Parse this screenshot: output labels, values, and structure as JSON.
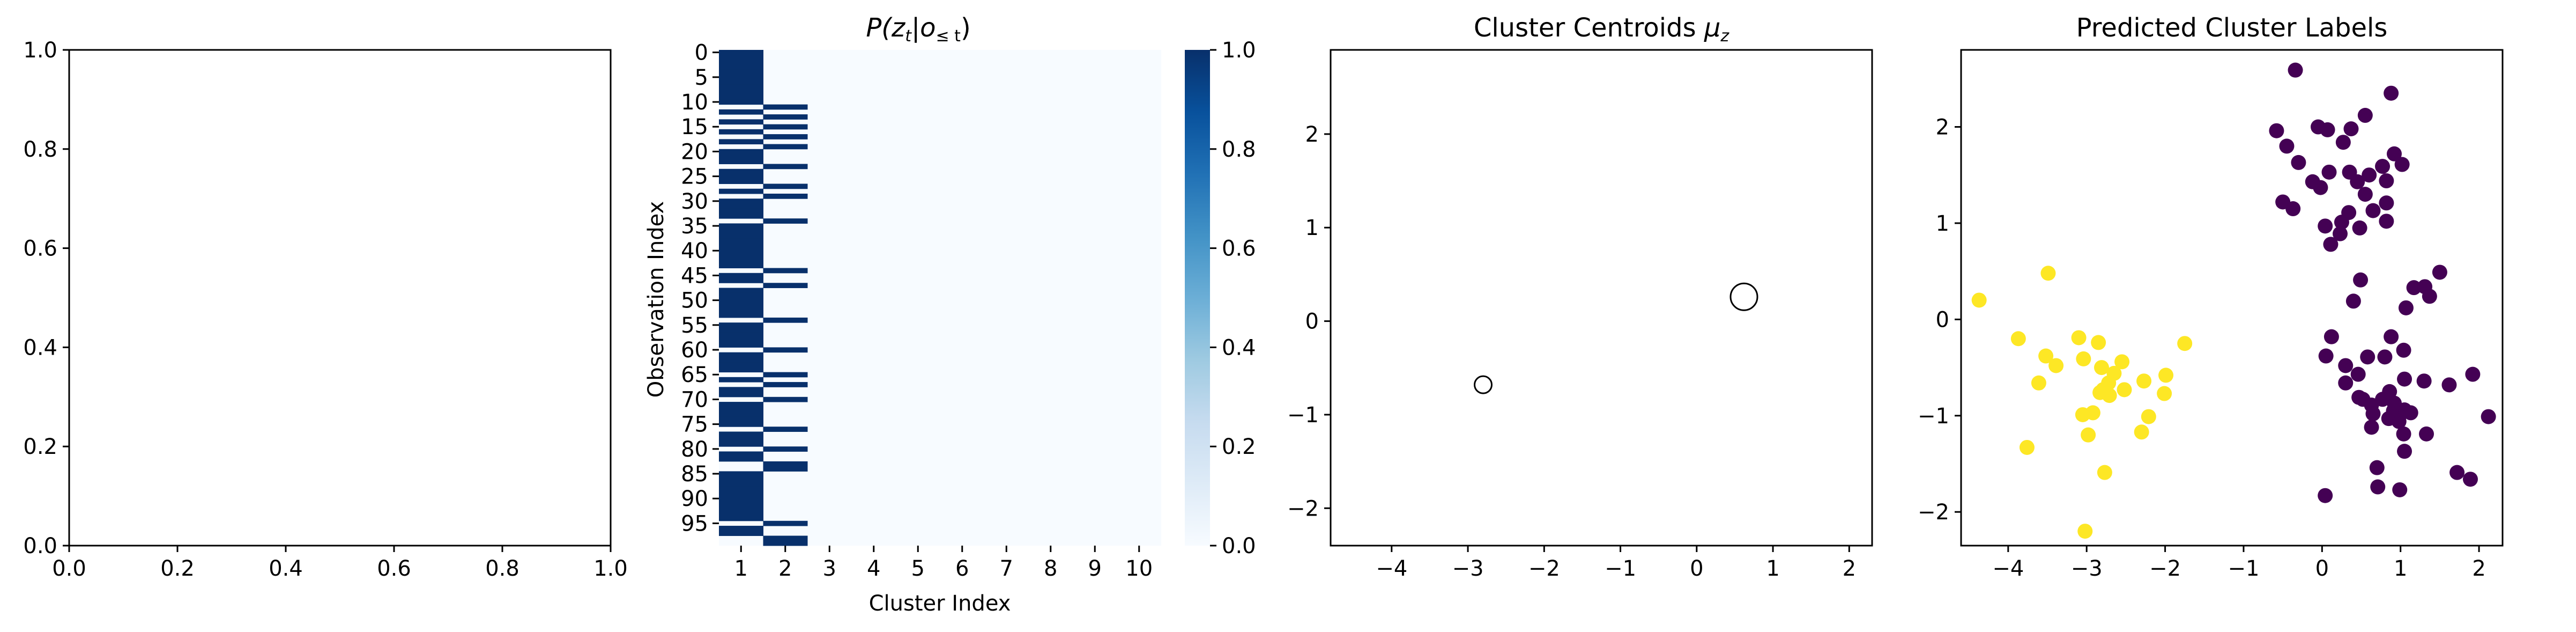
{
  "chart_data": [
    {
      "type": "line",
      "title": "",
      "xlabel": "",
      "ylabel": "",
      "xlim": [
        0.0,
        1.0
      ],
      "ylim": [
        0.0,
        1.0
      ],
      "xticks": [
        "0.0",
        "0.2",
        "0.4",
        "0.6",
        "0.8",
        "1.0"
      ],
      "yticks": [
        "0.0",
        "0.2",
        "0.4",
        "0.6",
        "0.8",
        "1.0"
      ],
      "series": []
    },
    {
      "type": "heatmap",
      "title_parts": {
        "p": "P(",
        "z": "z",
        "zsub": "t",
        "bar": "|",
        "o": "o",
        "osub": "≤ t",
        "close": ")"
      },
      "xlabel": "Cluster Index",
      "ylabel": "Observation Index",
      "xticks": [
        "1",
        "2",
        "3",
        "4",
        "5",
        "6",
        "7",
        "8",
        "9",
        "10"
      ],
      "yticks": [
        "0",
        "5",
        "10",
        "15",
        "20",
        "25",
        "30",
        "35",
        "40",
        "45",
        "50",
        "55",
        "60",
        "65",
        "70",
        "75",
        "80",
        "85",
        "90",
        "95"
      ],
      "n_rows": 100,
      "n_cols": 10,
      "cluster2_rows": [
        11,
        13,
        15,
        17,
        19,
        23,
        27,
        29,
        34,
        44,
        47,
        54,
        60,
        65,
        67,
        70,
        76,
        80,
        83,
        84,
        95,
        98,
        99
      ],
      "colorscale": [
        "#f7fbff",
        "#deebf7",
        "#c6dbef",
        "#9ecae1",
        "#6baed6",
        "#4292c6",
        "#2171b5",
        "#08519c",
        "#08306b"
      ],
      "colorbar": {
        "vmin": 0.0,
        "vmax": 1.0,
        "ticks": [
          "0.0",
          "0.2",
          "0.4",
          "0.6",
          "0.8",
          "1.0"
        ]
      }
    },
    {
      "type": "scatter",
      "title_text": "Cluster Centroids ",
      "title_mu": "μ",
      "title_sub": "z",
      "xlim": [
        -4.8,
        2.3
      ],
      "ylim": [
        -2.4,
        2.9
      ],
      "xticks": [
        "−4",
        "−3",
        "−2",
        "−1",
        "0",
        "1",
        "2"
      ],
      "yticks": [
        "−2",
        "−1",
        "0",
        "1",
        "2"
      ],
      "points": [
        {
          "x": -2.8,
          "y": -0.68,
          "size": "small"
        },
        {
          "x": 0.62,
          "y": 0.26,
          "size": "large"
        }
      ]
    },
    {
      "type": "scatter",
      "title": "Predicted Cluster Labels",
      "xlim": [
        -4.6,
        2.3
      ],
      "ylim": [
        -2.35,
        2.8
      ],
      "xticks": [
        "−4",
        "−3",
        "−2",
        "−1",
        "0",
        "1",
        "2"
      ],
      "yticks": [
        "−2",
        "−1",
        "0",
        "1",
        "2"
      ],
      "colors": {
        "0": "#440154",
        "1": "#fde725"
      },
      "series": [
        {
          "label": 0,
          "points": [
            [
              -0.34,
              2.59
            ],
            [
              -0.58,
              1.96
            ],
            [
              -0.45,
              1.8
            ],
            [
              -0.3,
              1.63
            ],
            [
              -0.05,
              2.0
            ],
            [
              0.07,
              1.97
            ],
            [
              0.37,
              1.98
            ],
            [
              0.35,
              1.53
            ],
            [
              0.09,
              1.53
            ],
            [
              -0.02,
              1.37
            ],
            [
              -0.12,
              1.43
            ],
            [
              -0.5,
              1.22
            ],
            [
              -0.37,
              1.15
            ],
            [
              0.27,
              1.84
            ],
            [
              0.55,
              2.12
            ],
            [
              0.45,
              1.43
            ],
            [
              0.6,
              1.5
            ],
            [
              0.55,
              1.3
            ],
            [
              0.88,
              2.35
            ],
            [
              0.92,
              1.72
            ],
            [
              1.02,
              1.61
            ],
            [
              0.77,
              1.59
            ],
            [
              0.82,
              1.44
            ],
            [
              0.65,
              1.13
            ],
            [
              0.82,
              1.02
            ],
            [
              0.34,
              1.11
            ],
            [
              0.25,
              1.01
            ],
            [
              0.04,
              0.97
            ],
            [
              0.11,
              0.78
            ],
            [
              0.23,
              0.89
            ],
            [
              0.48,
              0.95
            ],
            [
              0.82,
              1.21
            ],
            [
              0.49,
              0.41
            ],
            [
              0.4,
              0.19
            ],
            [
              1.07,
              0.12
            ],
            [
              1.17,
              0.33
            ],
            [
              1.31,
              0.34
            ],
            [
              1.37,
              0.24
            ],
            [
              1.5,
              0.49
            ],
            [
              0.88,
              -0.18
            ],
            [
              0.8,
              -0.39
            ],
            [
              0.58,
              -0.39
            ],
            [
              0.05,
              -0.38
            ],
            [
              0.12,
              -0.18
            ],
            [
              0.3,
              -0.48
            ],
            [
              0.46,
              -0.57
            ],
            [
              1.04,
              -0.32
            ],
            [
              1.05,
              -0.62
            ],
            [
              0.92,
              -0.87
            ],
            [
              1.3,
              -0.64
            ],
            [
              1.62,
              -0.68
            ],
            [
              1.92,
              -0.57
            ],
            [
              0.3,
              -0.66
            ],
            [
              0.52,
              -0.83
            ],
            [
              0.63,
              -0.89
            ],
            [
              0.65,
              -0.98
            ],
            [
              0.77,
              -0.83
            ],
            [
              0.86,
              -0.75
            ],
            [
              0.91,
              -0.95
            ],
            [
              0.98,
              -1.06
            ],
            [
              1.05,
              -0.94
            ],
            [
              1.13,
              -0.97
            ],
            [
              2.12,
              -1.01
            ],
            [
              0.47,
              -0.81
            ],
            [
              0.63,
              -1.12
            ],
            [
              0.85,
              -1.03
            ],
            [
              1.04,
              -1.19
            ],
            [
              0.98,
              -1.01
            ],
            [
              1.05,
              -1.37
            ],
            [
              1.33,
              -1.19
            ],
            [
              1.72,
              -1.59
            ],
            [
              1.89,
              -1.66
            ],
            [
              0.7,
              -1.54
            ],
            [
              0.71,
              -1.74
            ],
            [
              0.99,
              -1.77
            ],
            [
              0.04,
              -1.83
            ]
          ]
        },
        {
          "label": 1,
          "points": [
            [
              -4.37,
              0.2
            ],
            [
              -3.49,
              0.48
            ],
            [
              -3.87,
              -0.2
            ],
            [
              -3.52,
              -0.38
            ],
            [
              -3.39,
              -0.48
            ],
            [
              -3.1,
              -0.19
            ],
            [
              -2.85,
              -0.24
            ],
            [
              -3.04,
              -0.41
            ],
            [
              -2.81,
              -0.5
            ],
            [
              -2.65,
              -0.56
            ],
            [
              -2.72,
              -0.66
            ],
            [
              -3.61,
              -0.66
            ],
            [
              -2.83,
              -0.76
            ],
            [
              -2.55,
              -0.44
            ],
            [
              -2.52,
              -0.73
            ],
            [
              -2.27,
              -0.64
            ],
            [
              -1.99,
              -0.58
            ],
            [
              -1.75,
              -0.25
            ],
            [
              -2.01,
              -0.77
            ],
            [
              -2.71,
              -0.79
            ],
            [
              -2.79,
              -0.73
            ],
            [
              -3.05,
              -0.99
            ],
            [
              -2.92,
              -0.97
            ],
            [
              -3.76,
              -1.33
            ],
            [
              -2.21,
              -1.01
            ],
            [
              -2.3,
              -1.17
            ],
            [
              -2.98,
              -1.2
            ],
            [
              -2.77,
              -1.59
            ],
            [
              -3.02,
              -2.2
            ]
          ]
        }
      ]
    }
  ]
}
